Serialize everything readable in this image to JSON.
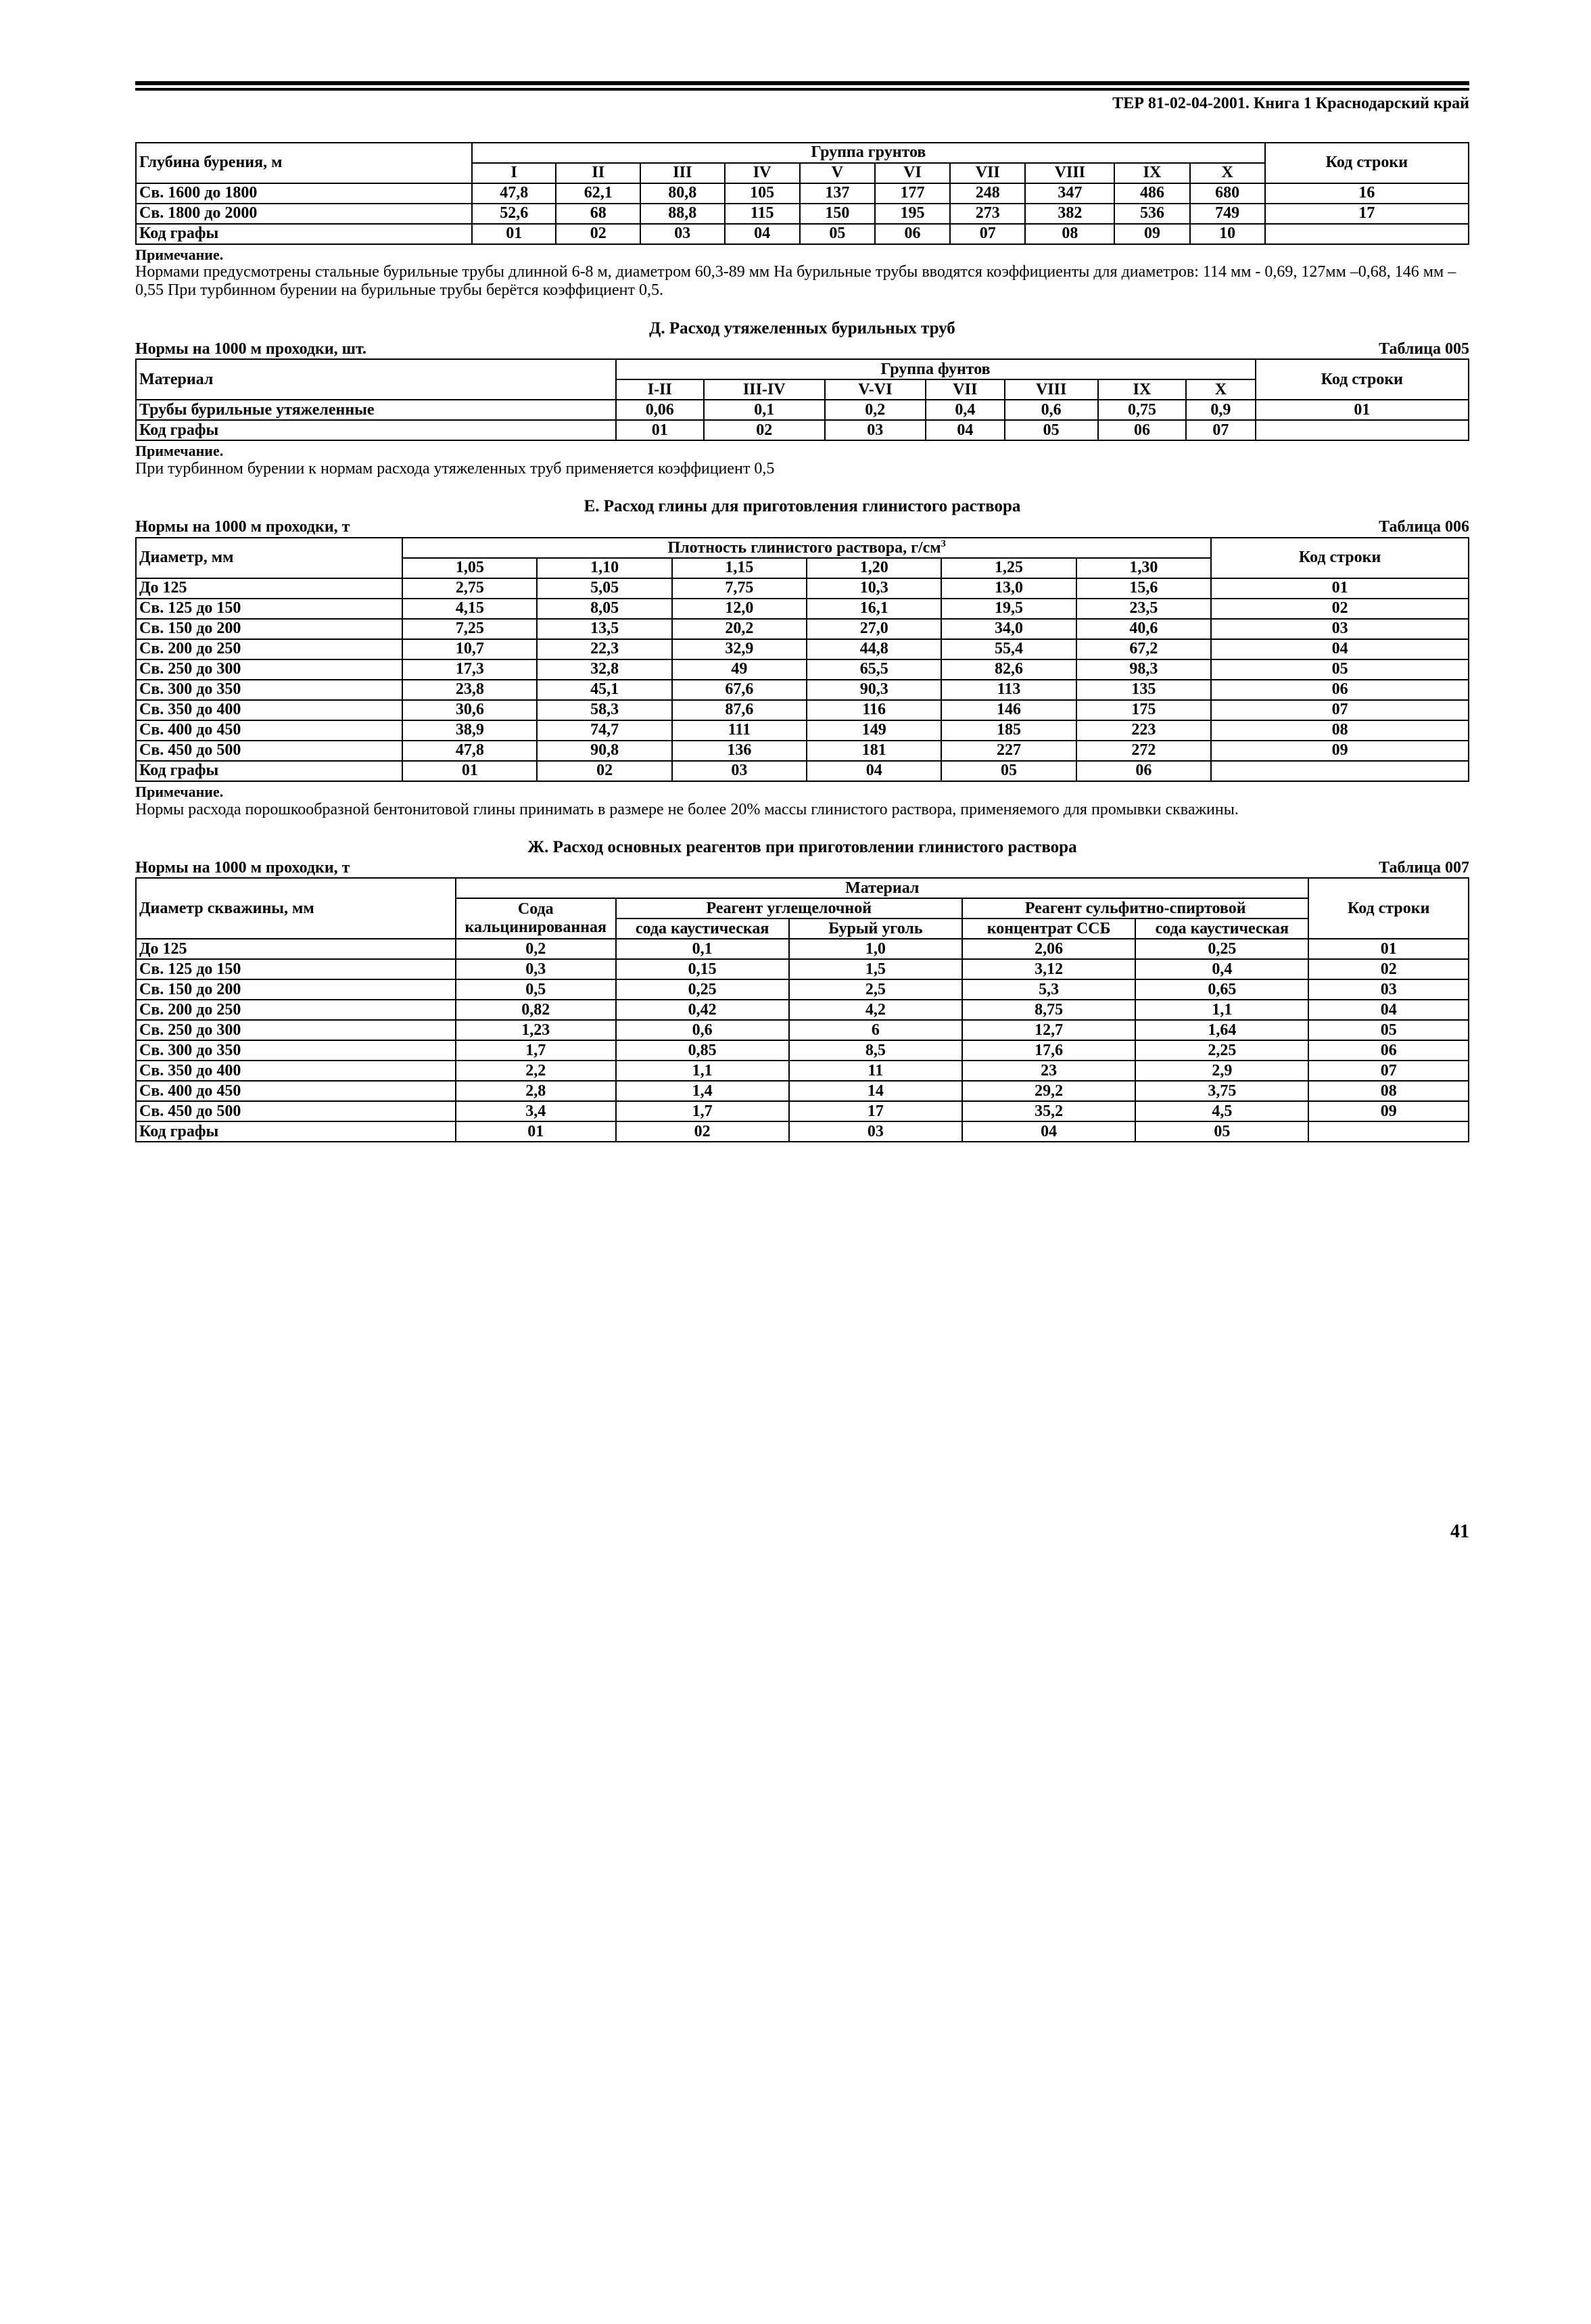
{
  "header": "ТЕР 81-02-04-2001. Книга 1   Краснодарский край",
  "tableA": {
    "colhead1": "Глубина бурения, м",
    "group": "Группа грунтов",
    "kod": "Код строки",
    "cols": [
      "I",
      "II",
      "III",
      "IV",
      "V",
      "VI",
      "VII",
      "VIII",
      "IX",
      "X"
    ],
    "rows": [
      {
        "label": "Св. 1600 до 1800",
        "v": [
          "47,8",
          "62,1",
          "80,8",
          "105",
          "137",
          "177",
          "248",
          "347",
          "486",
          "680"
        ],
        "k": "16"
      },
      {
        "label": "Св. 1800 до 2000",
        "v": [
          "52,6",
          "68",
          "88,8",
          "115",
          "150",
          "195",
          "273",
          "382",
          "536",
          "749"
        ],
        "k": "17"
      },
      {
        "label": "Код графы",
        "v": [
          "01",
          "02",
          "03",
          "04",
          "05",
          "06",
          "07",
          "08",
          "09",
          "10"
        ],
        "k": ""
      }
    ],
    "noteTitle": "Примечание.",
    "noteBody": "Нормами предусмотрены стальные бурильные трубы длинной 6-8 м, диаметром 60,3-89 мм На бурильные трубы вводятся коэффициенты для диаметров: 114 мм - 0,69, 127мм –0,68, 146 мм – 0,55 При турбинном бурении на бурильные трубы берётся коэффициент 0,5."
  },
  "sectionD": {
    "title": "Д. Расход утяжеленных бурильных труб",
    "norms": "Нормы на 1000 м проходки, шт.",
    "tab": "Таблица 005",
    "col1": "Материал",
    "group": "Группа фунтов",
    "kod": "Код строки",
    "cols": [
      "I-II",
      "III-IV",
      "V-VI",
      "VII",
      "VIII",
      "IX",
      "X"
    ],
    "rows": [
      {
        "label": "Трубы бурильные утяжеленные",
        "v": [
          "0,06",
          "0,1",
          "0,2",
          "0,4",
          "0,6",
          "0,75",
          "0,9"
        ],
        "k": "01"
      },
      {
        "label": "Код графы",
        "v": [
          "01",
          "02",
          "03",
          "04",
          "05",
          "06",
          "07"
        ],
        "k": ""
      }
    ],
    "noteTitle": "Примечание.",
    "noteBody": "При турбинном бурении к нормам расхода утяжеленных труб применяется коэффициент 0,5"
  },
  "sectionE": {
    "title": "Е. Расход глины для приготовления глинистого раствора",
    "norms": "Нормы на 1000 м проходки, т",
    "tab": "Таблица 006",
    "col1": "Диаметр, мм",
    "group": "Плотность глинистого раствора, г/см",
    "kod": "Код строки",
    "cols": [
      "1,05",
      "1,10",
      "1,15",
      "1,20",
      "1,25",
      "1,30"
    ],
    "rows": [
      {
        "label": "До  125",
        "v": [
          "2,75",
          "5,05",
          "7,75",
          "10,3",
          "13,0",
          "15,6"
        ],
        "k": "01"
      },
      {
        "label": "Св. 125 до 150",
        "v": [
          "4,15",
          "8,05",
          "12,0",
          "16,1",
          "19,5",
          "23,5"
        ],
        "k": "02"
      },
      {
        "label": "Св. 150 до 200",
        "v": [
          "7,25",
          "13,5",
          "20,2",
          "27,0",
          "34,0",
          "40,6"
        ],
        "k": "03"
      },
      {
        "label": "Св. 200 до 250",
        "v": [
          "10,7",
          "22,3",
          "32,9",
          "44,8",
          "55,4",
          "67,2"
        ],
        "k": "04"
      },
      {
        "label": "Св. 250 до 300",
        "v": [
          "17,3",
          "32,8",
          "49",
          "65,5",
          "82,6",
          "98,3"
        ],
        "k": "05"
      },
      {
        "label": "Св. 300 до 350",
        "v": [
          "23,8",
          "45,1",
          "67,6",
          "90,3",
          "113",
          "135"
        ],
        "k": "06"
      },
      {
        "label": "Св. 350 до 400",
        "v": [
          "30,6",
          "58,3",
          "87,6",
          "116",
          "146",
          "175"
        ],
        "k": "07"
      },
      {
        "label": "Св. 400 до 450",
        "v": [
          "38,9",
          "74,7",
          "111",
          "149",
          "185",
          "223"
        ],
        "k": "08"
      },
      {
        "label": "Св. 450 до 500",
        "v": [
          "47,8",
          "90,8",
          "136",
          "181",
          "227",
          "272"
        ],
        "k": "09"
      },
      {
        "label": "Код графы",
        "v": [
          "01",
          "02",
          "03",
          "04",
          "05",
          "06"
        ],
        "k": ""
      }
    ],
    "noteTitle": "Примечание.",
    "noteBody": "Нормы расхода порошкообразной бентонитовой глины принимать в размере не более 20% массы глинистого раствора, применяемого для промывки скважины."
  },
  "sectionZh": {
    "title": "Ж. Расход основных реагентов при приготовлении глинистого раствора",
    "norms": "Нормы на 1000 м проходки, т",
    "tab": "Таблица 007",
    "col1": "Диаметр скважины, мм",
    "mat": "Материал",
    "kod": "Код строки",
    "h1": "Сода кальцинированная",
    "h2": "Реагент углещелочной",
    "h3": "Реагент сульфитно-спиртовой",
    "s1": "сода каустическая",
    "s2": "Бурый уголь",
    "s3": "концентрат ССБ",
    "s4": "сода каустическая",
    "rows": [
      {
        "label": "До 125",
        "v": [
          "0,2",
          "0,1",
          "1,0",
          "2,06",
          "0,25"
        ],
        "k": "01"
      },
      {
        "label": "Св. 125 до 150",
        "v": [
          "0,3",
          "0,15",
          "1,5",
          "3,12",
          "0,4"
        ],
        "k": "02"
      },
      {
        "label": "Св. 150 до 200",
        "v": [
          "0,5",
          "0,25",
          "2,5",
          "5,3",
          "0,65"
        ],
        "k": "03"
      },
      {
        "label": "Св. 200 до 250",
        "v": [
          "0,82",
          "0,42",
          "4,2",
          "8,75",
          "1,1"
        ],
        "k": "04"
      },
      {
        "label": "Св. 250 до 300",
        "v": [
          "1,23",
          "0,6",
          "6",
          "12,7",
          "1,64"
        ],
        "k": "05"
      },
      {
        "label": "Св. 300 до 350",
        "v": [
          "1,7",
          "0,85",
          "8,5",
          "17,6",
          "2,25"
        ],
        "k": "06"
      },
      {
        "label": "Св. 350 до 400",
        "v": [
          "2,2",
          "1,1",
          "11",
          "23",
          "2,9"
        ],
        "k": "07"
      },
      {
        "label": "Св. 400 до 450",
        "v": [
          "2,8",
          "1,4",
          "14",
          "29,2",
          "3,75"
        ],
        "k": "08"
      },
      {
        "label": "Св. 450 до 500",
        "v": [
          "3,4",
          "1,7",
          "17",
          "35,2",
          "4,5"
        ],
        "k": "09"
      },
      {
        "label": "Код графы",
        "v": [
          "01",
          "02",
          "03",
          "04",
          "05"
        ],
        "k": ""
      }
    ]
  },
  "pageNum": "41"
}
